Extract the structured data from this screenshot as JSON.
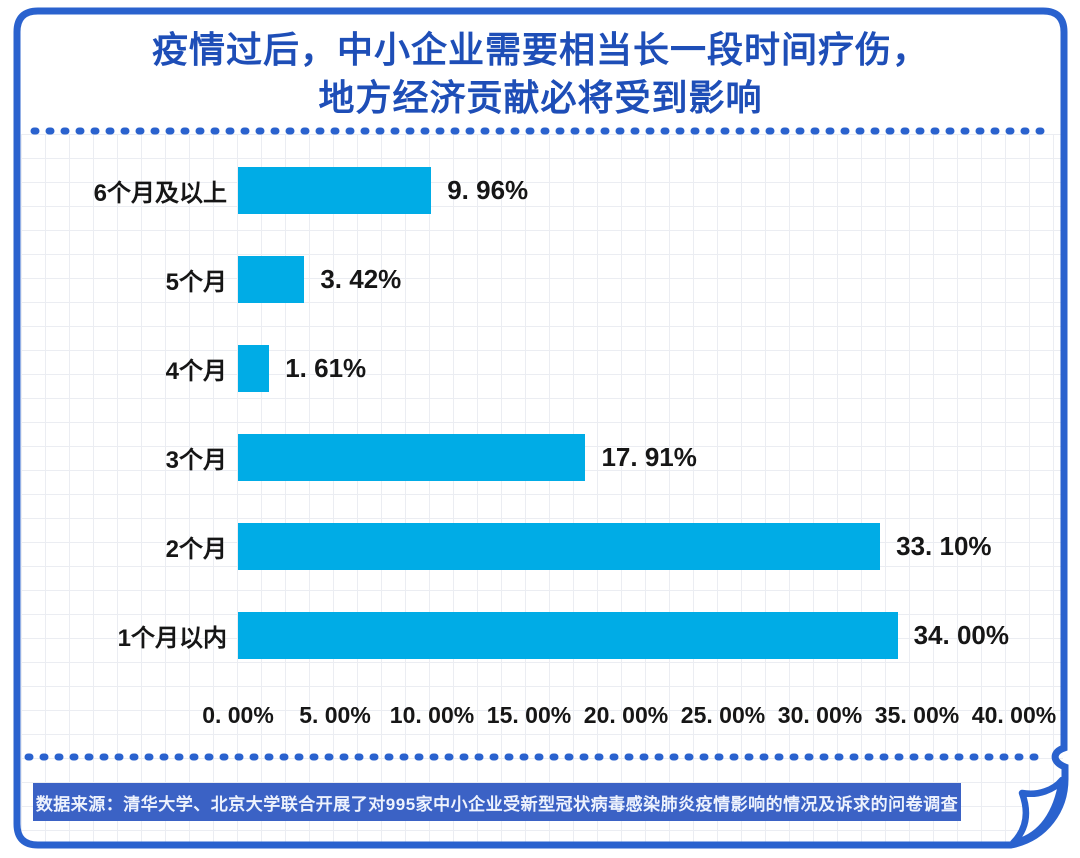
{
  "title": {
    "line1": "疫情过后，中小企业需要相当长一段时间疗伤，",
    "line2": "地方经济贡献必将受到影响"
  },
  "footer": {
    "text": "数据来源：清华大学、北京大学联合开展了对995家中小企业受新型冠状病毒感染肺炎疫情影响的情况及诉求的问卷调查"
  },
  "colors": {
    "frame_blue": "#2A62CE",
    "title_blue": "#1E4EB7",
    "banner_blue": "#3B62C5",
    "bar_cyan": "#00ACE6",
    "label_black": "#161616",
    "grid_gray": "#ebedf2"
  },
  "chart_data": {
    "type": "bar",
    "orientation": "horizontal",
    "title": "疫情过后，中小企业需要相当长一段时间疗伤，地方经济贡献必将受到影响",
    "categories": [
      "6个月及以上",
      "5个月",
      "4个月",
      "3个月",
      "2个月",
      "1个月以内"
    ],
    "values": [
      9.96,
      3.42,
      1.61,
      17.91,
      33.1,
      34.0
    ],
    "value_labels": [
      "9. 96%",
      "3. 42%",
      "1. 61%",
      "17. 91%",
      "33. 10%",
      "34. 00%"
    ],
    "xlim": [
      0,
      40
    ],
    "x_tick_labels": [
      "0. 00%",
      "5. 00%",
      "10. 00%",
      "15. 00%",
      "20. 00%",
      "25. 00%",
      "30. 00%",
      "35. 00%",
      "40. 00%"
    ],
    "xlabel": "",
    "ylabel": "",
    "grid": true,
    "legend": false,
    "bar_color": "#00ACE6"
  }
}
